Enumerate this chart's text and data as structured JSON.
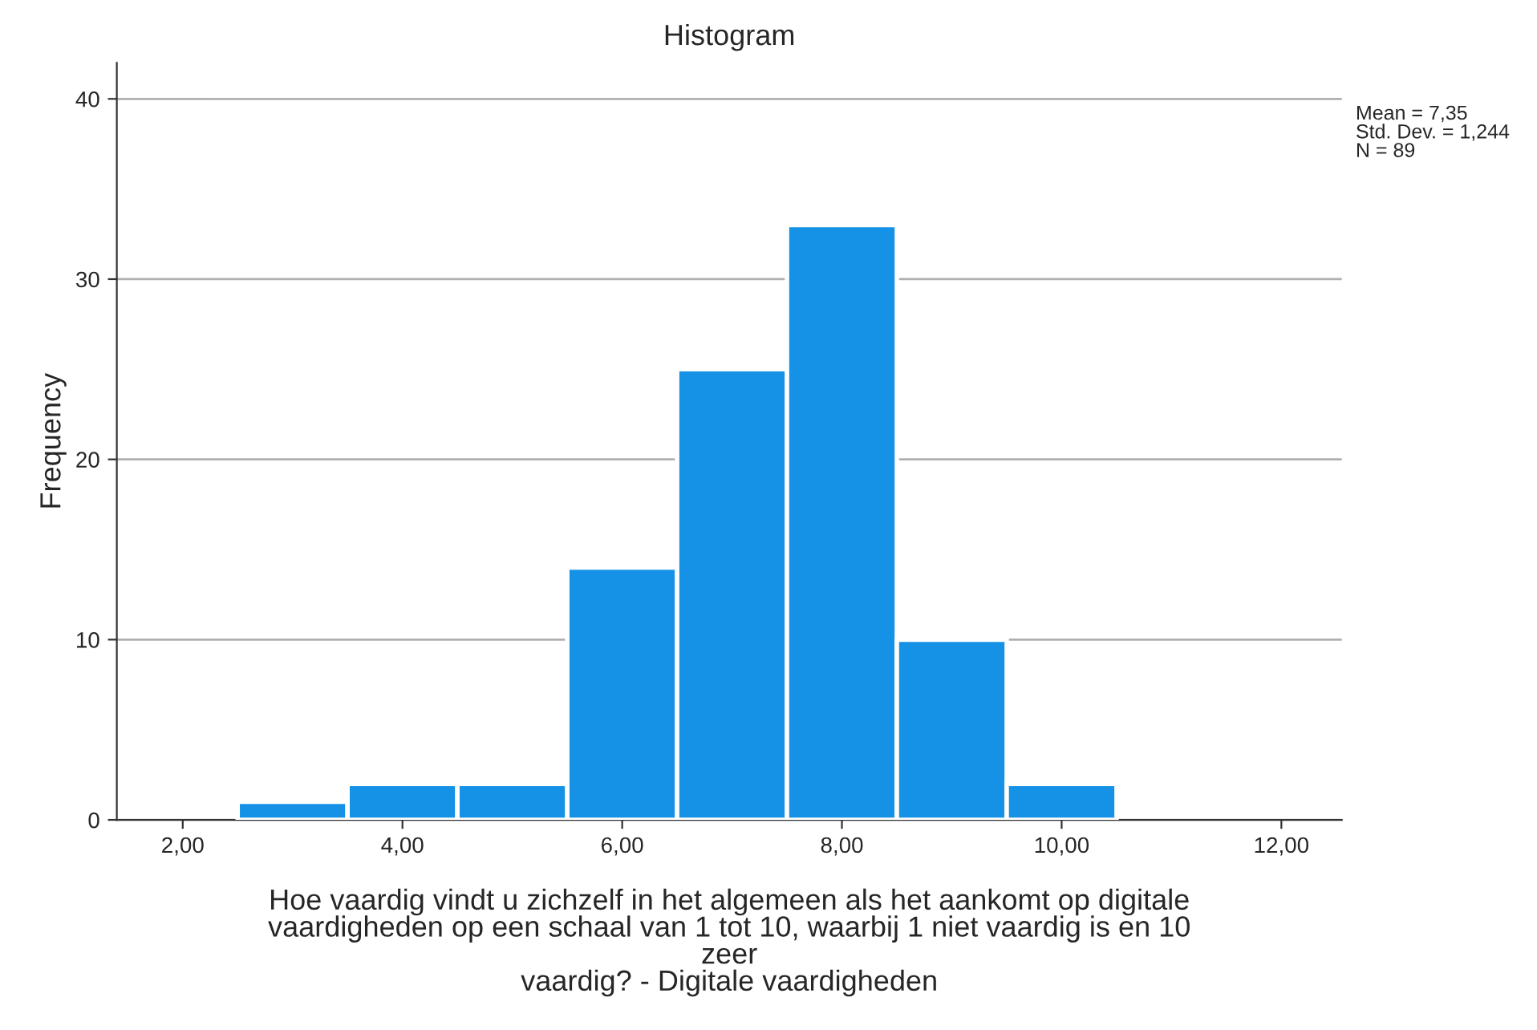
{
  "chart_data": {
    "type": "histogram",
    "title": "Histogram",
    "xlabel": "Hoe vaardig vindt u zichzelf in het algemeen als het aankomt op digitale\nvaardigheden op een schaal van 1 tot 10, waarbij 1 niet vaardig is en 10\nzeer\nvaardig? - Digitale vaardigheden",
    "ylabel": "Frequency",
    "bins": [
      2.5,
      3.5,
      4.5,
      5.5,
      6.5,
      7.5,
      8.5,
      9.5,
      10.5
    ],
    "values": [
      1,
      2,
      2,
      14,
      25,
      33,
      10,
      2
    ],
    "color": "#1591e6",
    "xlim": [
      1.4,
      12.55
    ],
    "ylim": [
      0,
      42
    ],
    "xticks": [
      {
        "value": 2,
        "label": "2,00"
      },
      {
        "value": 4,
        "label": "4,00"
      },
      {
        "value": 6,
        "label": "6,00"
      },
      {
        "value": 8,
        "label": "8,00"
      },
      {
        "value": 10,
        "label": "10,00"
      },
      {
        "value": 12,
        "label": "12,00"
      }
    ],
    "yticks": [
      0,
      10,
      20,
      30,
      40
    ],
    "grid": "y",
    "annotations": [
      "Mean = 7,35\nStd. Dev. = 1,244\nN = 89"
    ]
  }
}
